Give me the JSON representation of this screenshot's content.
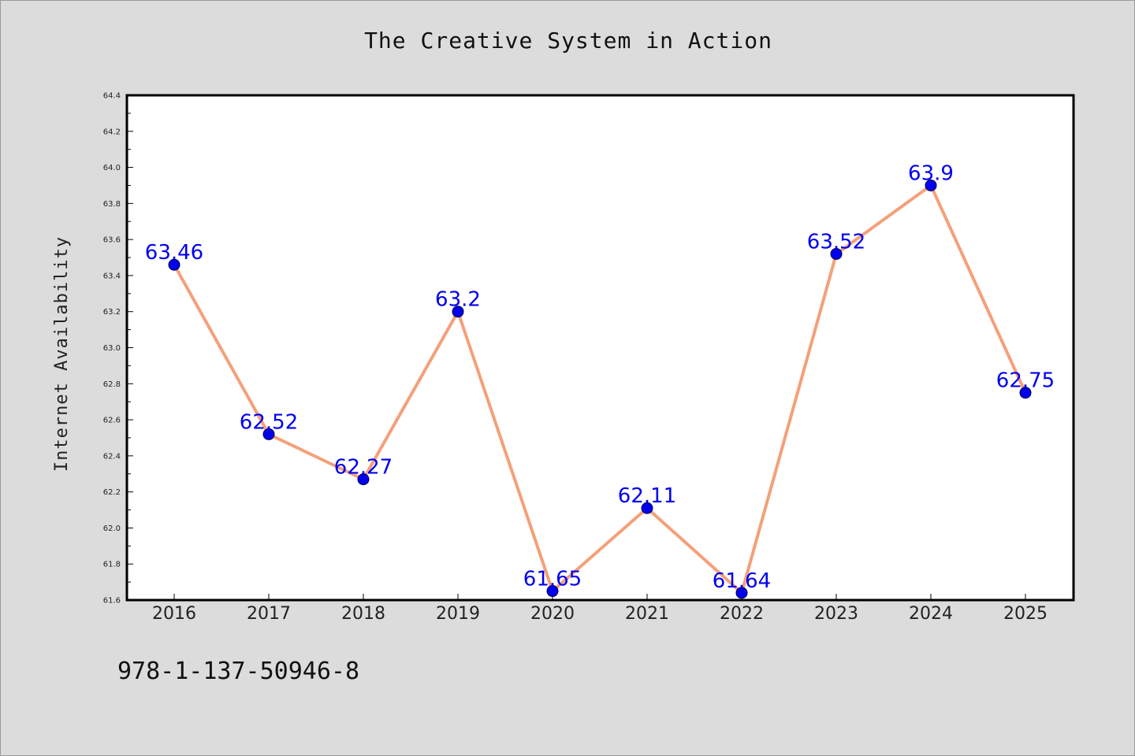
{
  "title": "The Creative System in Action",
  "footer_code": "978-1-137-50946-8",
  "colors": {
    "background": "#dcdcdc",
    "plot_background": "#ffffff",
    "line": "#f4a07a",
    "marker": "#0000ee",
    "data_label": "#0000ee"
  },
  "chart_data": {
    "type": "line",
    "title": "The Creative System in Action",
    "xlabel": "",
    "ylabel": "Internet Availability",
    "categories": [
      "2016",
      "2017",
      "2018",
      "2019",
      "2020",
      "2021",
      "2022",
      "2023",
      "2024",
      "2025"
    ],
    "values": [
      63.46,
      62.52,
      62.27,
      63.2,
      61.65,
      62.11,
      61.64,
      63.52,
      63.9,
      62.75
    ],
    "data_labels": [
      "63.46",
      "62.52",
      "62.27",
      "63.2",
      "61.65",
      "62.11",
      "61.64",
      "63.52",
      "63.9",
      "62.75"
    ],
    "ylim": [
      61.6,
      64.4
    ],
    "yticks": [
      "61.6",
      "61.8",
      "62.0",
      "62.2",
      "62.4",
      "62.6",
      "62.8",
      "63.0",
      "63.2",
      "63.4",
      "63.6",
      "63.8",
      "64.0",
      "64.2",
      "64.4"
    ],
    "grid": false,
    "legend": "none"
  }
}
